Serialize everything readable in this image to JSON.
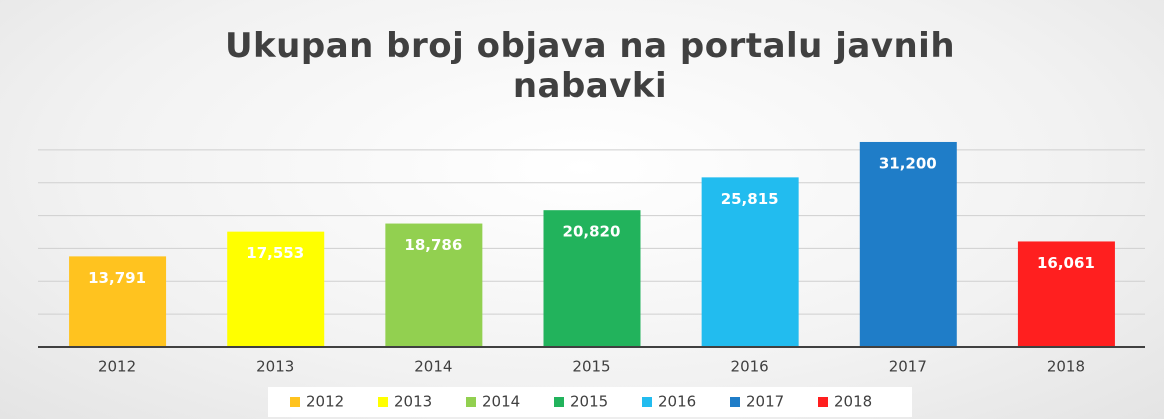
{
  "chart_data": {
    "type": "bar",
    "title": "Ukupan broj objava na portalu javnih nabavki",
    "categories": [
      "2012",
      "2013",
      "2014",
      "2015",
      "2016",
      "2017",
      "2018"
    ],
    "values": [
      13791,
      17553,
      18786,
      20820,
      25815,
      31200,
      16061
    ],
    "value_labels": [
      "13,791",
      "17,553",
      "18,786",
      "20,820",
      "25,815",
      "31,200",
      "16,061"
    ],
    "colors": [
      "#ffc31f",
      "#ffff00",
      "#92d050",
      "#22b35c",
      "#22bcef",
      "#1f7dc8",
      "#ff1f1f"
    ],
    "ylim": [
      0,
      35000
    ],
    "yticks": [
      0,
      5000,
      10000,
      15000,
      20000,
      25000,
      30000
    ],
    "grid": true,
    "legend": "bottom"
  }
}
